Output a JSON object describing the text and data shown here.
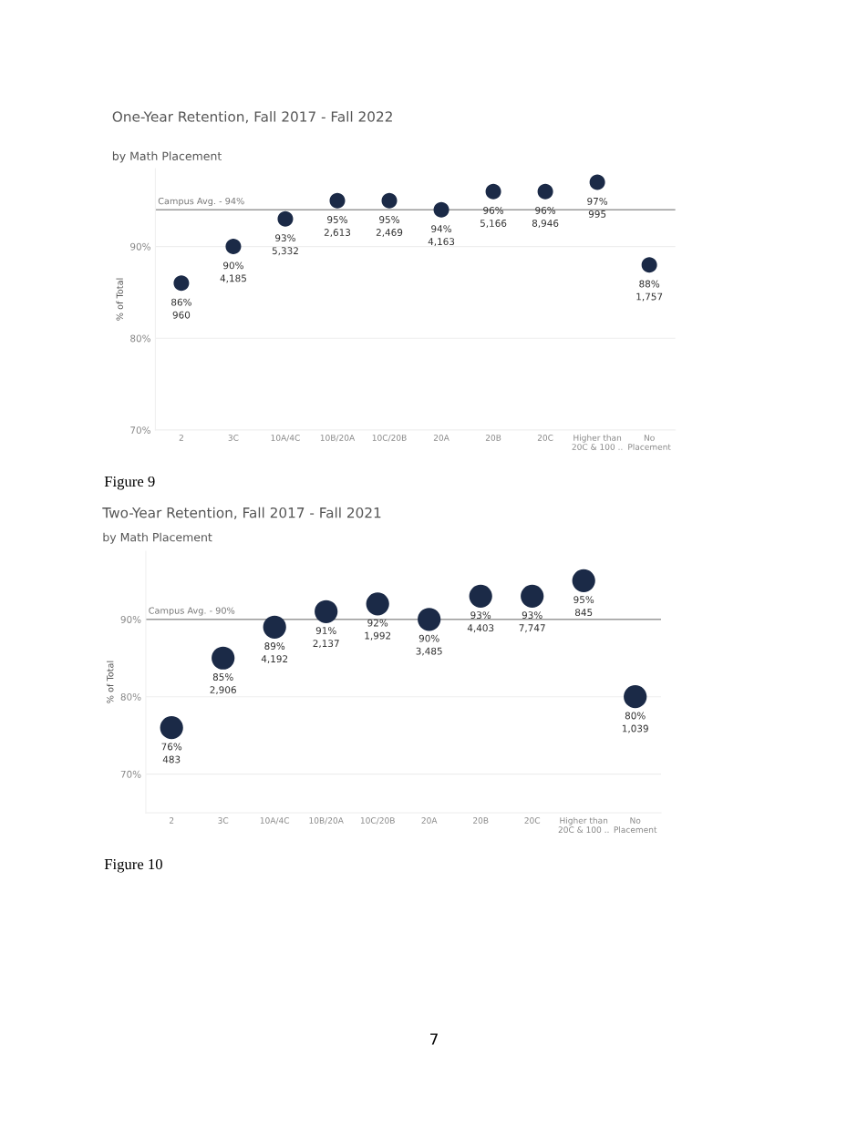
{
  "chart_data": [
    {
      "type": "scatter",
      "title": "One-Year Retention, Fall 2017 - Fall 2022",
      "subtitle": "by Math Placement",
      "ylabel": "% of Total",
      "categories": [
        "2",
        "3C",
        "10A/4C",
        "10B/20A",
        "10C/20B",
        "20A",
        "20B",
        "20C",
        "Higher than\n20C & 100 ..",
        "No\nPlacement"
      ],
      "series": [
        {
          "color": "#1b2a47",
          "values": [
            86,
            90,
            93,
            95,
            95,
            94,
            96,
            96,
            97,
            88
          ],
          "value_labels": [
            "86%\n960",
            "90%\n4,185",
            "93%\n5,332",
            "95%\n2,613",
            "95%\n2,469",
            "94%\n4,163",
            "96%\n5,166",
            "96%\n8,946",
            "97%\n995",
            "88%\n1,757"
          ]
        }
      ],
      "ylim": [
        70,
        98.5
      ],
      "yticks": [
        {
          "value": 70,
          "label": "70%"
        },
        {
          "value": 80,
          "label": "80%"
        },
        {
          "value": 90,
          "label": "90%"
        }
      ],
      "ref_lines": [
        {
          "axis": "y",
          "value": 94,
          "label": "Campus Avg. - 94%",
          "color": "#9a9a9a"
        }
      ],
      "grid": "y",
      "legend": false,
      "marker": "circle",
      "annotations": [
        "Figure 9"
      ]
    },
    {
      "type": "scatter",
      "title": "Two-Year Retention, Fall 2017 - Fall 2021",
      "subtitle": "by Math Placement",
      "ylabel": "% of Total",
      "categories": [
        "2",
        "3C",
        "10A/4C",
        "10B/20A",
        "10C/20B",
        "20A",
        "20B",
        "20C",
        "Higher than\n20C & 100 ..",
        "No\nPlacement"
      ],
      "series": [
        {
          "color": "#1b2a47",
          "values": [
            76,
            85,
            89,
            91,
            92,
            90,
            93,
            93,
            95,
            80
          ],
          "value_labels": [
            "76%\n483",
            "85%\n2,906",
            "89%\n4,192",
            "91%\n2,137",
            "92%\n1,992",
            "90%\n3,485",
            "93%\n4,403",
            "93%\n7,747",
            "95%\n845",
            "80%\n1,039"
          ]
        }
      ],
      "ylim": [
        65,
        98.8
      ],
      "yticks": [
        {
          "value": 70,
          "label": "70%"
        },
        {
          "value": 80,
          "label": "80%"
        },
        {
          "value": 90,
          "label": "90%"
        }
      ],
      "ref_lines": [
        {
          "axis": "y",
          "value": 90,
          "label": "Campus Avg. - 90%",
          "color": "#9a9a9a"
        }
      ],
      "grid": "y",
      "legend": false,
      "marker": "circle",
      "annotations": [
        "Figure 10",
        "7"
      ]
    }
  ]
}
